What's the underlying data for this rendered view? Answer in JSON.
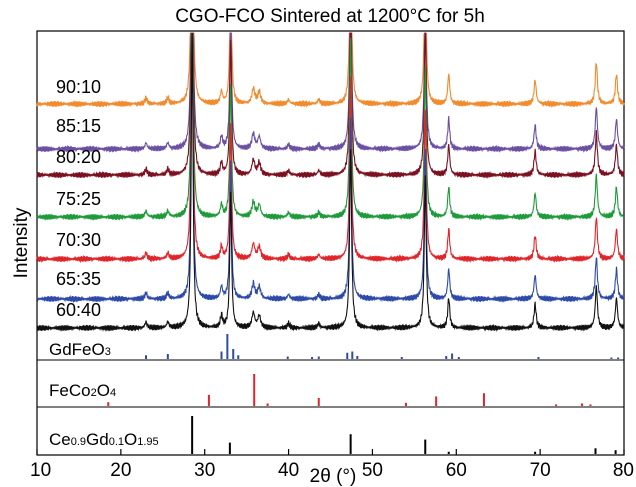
{
  "chart_data": {
    "type": "line",
    "title": "CGO-FCO Sintered at 1200°C for 5h",
    "xlabel": "2θ (°)",
    "ylabel": "Intensity",
    "xlim": [
      10,
      80
    ],
    "x_ticks": [
      "10",
      "20",
      "30",
      "40",
      "50",
      "60",
      "70",
      "80"
    ],
    "series": [
      {
        "name": "90:10",
        "color": "#f28a2e"
      },
      {
        "name": "85:15",
        "color": "#6a4fa3"
      },
      {
        "name": "80:20",
        "color": "#7a1020"
      },
      {
        "name": "75:25",
        "color": "#1f9a3a"
      },
      {
        "name": "70:30",
        "color": "#e0252a"
      },
      {
        "name": "65:35",
        "color": "#2e4aa8"
      },
      {
        "name": "60:40",
        "color": "#111111"
      }
    ],
    "peaks": [
      {
        "x": 28.5,
        "h": 1.0,
        "w": 0.13
      },
      {
        "x": 33.1,
        "h": 0.45,
        "w": 0.13
      },
      {
        "x": 47.4,
        "h": 0.6,
        "w": 0.14
      },
      {
        "x": 56.3,
        "h": 0.5,
        "w": 0.14
      },
      {
        "x": 59.1,
        "h": 0.1,
        "w": 0.14
      },
      {
        "x": 69.4,
        "h": 0.08,
        "w": 0.15
      },
      {
        "x": 76.7,
        "h": 0.14,
        "w": 0.15
      },
      {
        "x": 79.1,
        "h": 0.1,
        "w": 0.15
      },
      {
        "x": 32.0,
        "h": 0.04,
        "w": 0.15
      },
      {
        "x": 35.8,
        "h": 0.05,
        "w": 0.2
      },
      {
        "x": 36.5,
        "h": 0.04,
        "w": 0.2
      },
      {
        "x": 23.0,
        "h": 0.02,
        "w": 0.15
      },
      {
        "x": 25.6,
        "h": 0.02,
        "w": 0.15
      },
      {
        "x": 40.0,
        "h": 0.015,
        "w": 0.15
      },
      {
        "x": 43.6,
        "h": 0.015,
        "w": 0.15
      }
    ],
    "references": [
      {
        "name": "GdFeO3",
        "label_main": "GdFeO",
        "label_sub": "3",
        "color": "#2e4aa8",
        "sticks": [
          {
            "x": 23.0,
            "h": 0.15
          },
          {
            "x": 25.6,
            "h": 0.2
          },
          {
            "x": 32.0,
            "h": 0.3
          },
          {
            "x": 32.7,
            "h": 1.0
          },
          {
            "x": 33.4,
            "h": 0.4
          },
          {
            "x": 34.0,
            "h": 0.15
          },
          {
            "x": 39.9,
            "h": 0.1
          },
          {
            "x": 42.8,
            "h": 0.08
          },
          {
            "x": 43.6,
            "h": 0.1
          },
          {
            "x": 47.0,
            "h": 0.25
          },
          {
            "x": 47.6,
            "h": 0.3
          },
          {
            "x": 48.2,
            "h": 0.12
          },
          {
            "x": 53.5,
            "h": 0.08
          },
          {
            "x": 58.8,
            "h": 0.12
          },
          {
            "x": 59.5,
            "h": 0.22
          },
          {
            "x": 60.3,
            "h": 0.08
          },
          {
            "x": 69.8,
            "h": 0.08
          },
          {
            "x": 78.5,
            "h": 0.06
          },
          {
            "x": 79.3,
            "h": 0.06
          }
        ]
      },
      {
        "name": "FeCo2O4",
        "label_main": "FeCo",
        "label_sub": "2",
        "label_tail": "O",
        "label_sub2": "4",
        "color": "#e0252a",
        "sticks": [
          {
            "x": 18.5,
            "h": 0.12
          },
          {
            "x": 30.5,
            "h": 0.35
          },
          {
            "x": 35.9,
            "h": 1.0
          },
          {
            "x": 37.5,
            "h": 0.08
          },
          {
            "x": 43.6,
            "h": 0.25
          },
          {
            "x": 54.0,
            "h": 0.1
          },
          {
            "x": 57.6,
            "h": 0.3
          },
          {
            "x": 63.3,
            "h": 0.4
          },
          {
            "x": 71.9,
            "h": 0.05
          },
          {
            "x": 75.0,
            "h": 0.08
          },
          {
            "x": 76.0,
            "h": 0.05
          }
        ]
      },
      {
        "name": "Ce0.9Gd0.1O1.95",
        "label_main": "Ce",
        "label_sub": "0.9",
        "label_tail": "Gd",
        "label_sub2": "0.1",
        "label_tail2": "O",
        "label_sub3": "1.95",
        "color": "#000000",
        "sticks": [
          {
            "x": 28.5,
            "h": 1.0
          },
          {
            "x": 33.0,
            "h": 0.3
          },
          {
            "x": 47.4,
            "h": 0.52
          },
          {
            "x": 56.3,
            "h": 0.38
          },
          {
            "x": 59.1,
            "h": 0.06
          },
          {
            "x": 69.4,
            "h": 0.06
          },
          {
            "x": 76.6,
            "h": 0.15
          },
          {
            "x": 79.0,
            "h": 0.1
          }
        ]
      }
    ],
    "grid": false,
    "legend": "inline-left"
  }
}
